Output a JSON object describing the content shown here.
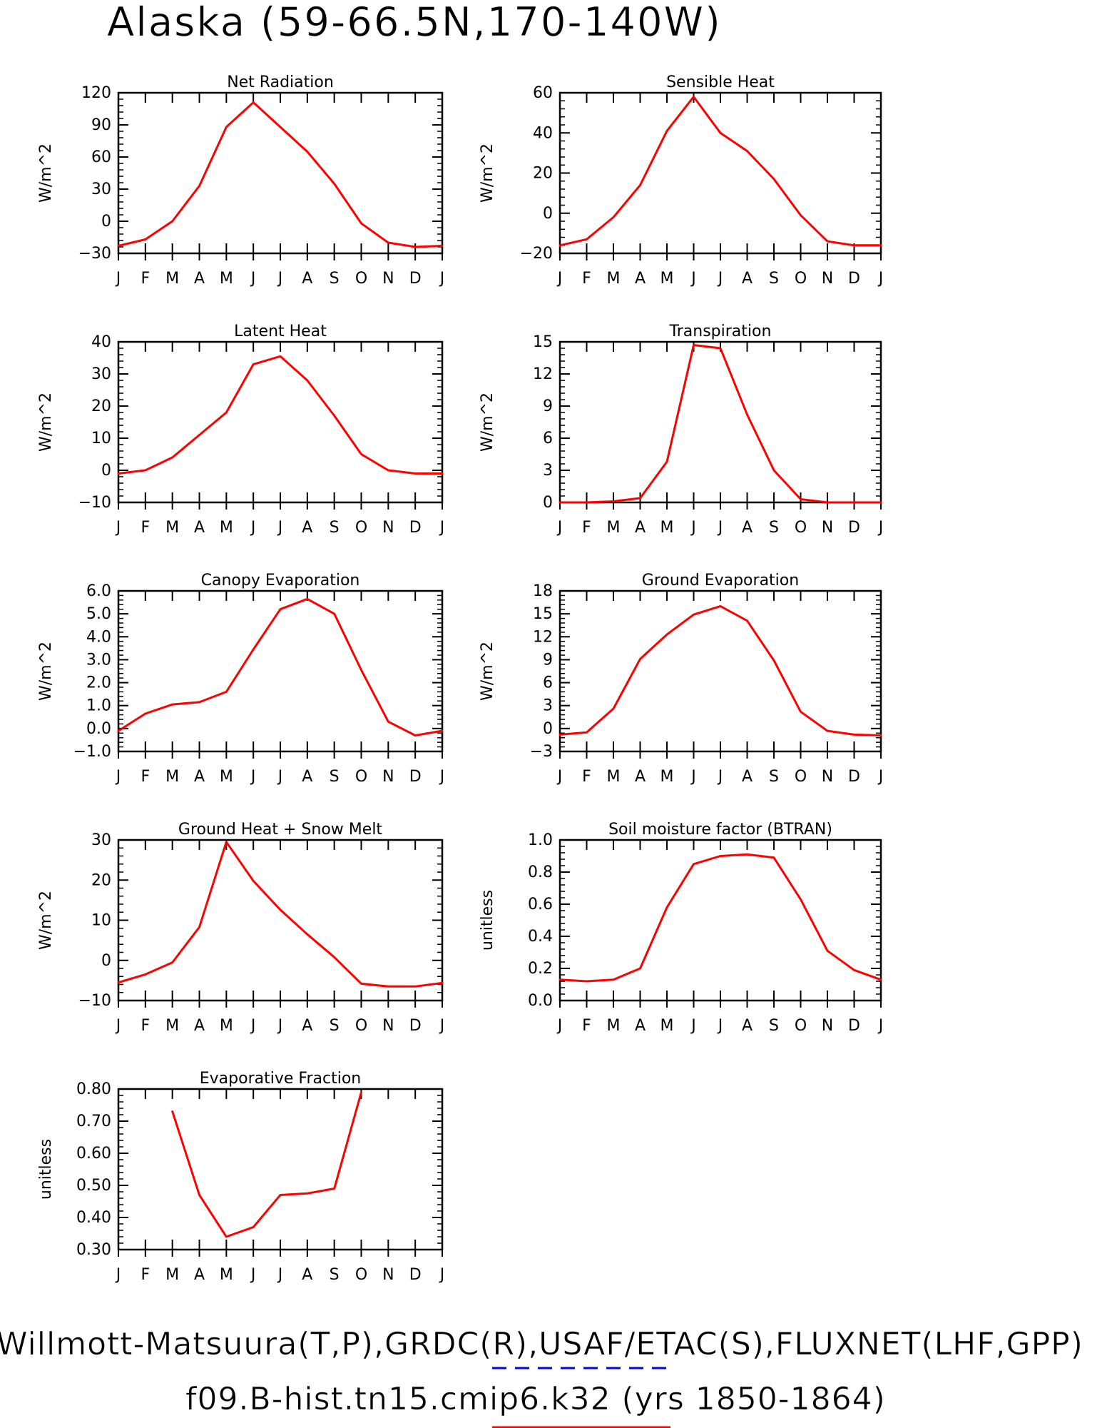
{
  "page_title": "Alaska (59-66.5N,170-140W)",
  "footer": {
    "line1": "Willmott-Matsuura(T,P),GRDC(R),USAF/ETAC(S),FLUXNET(LHF,GPP)",
    "line2": "f09.B-hist.tn15.cmip6.k32 (yrs 1850-1864)"
  },
  "legend": {
    "obs_color": "#0000ff",
    "model_color": "#ff0000"
  },
  "chart_data": [
    {
      "type": "line",
      "title": "Net Radiation",
      "ylabel": "W/m^2",
      "categories": [
        "J",
        "F",
        "M",
        "A",
        "M",
        "J",
        "J",
        "A",
        "S",
        "O",
        "N",
        "D",
        "J"
      ],
      "ylim": [
        -30,
        120
      ],
      "yticks": [
        -30,
        0,
        30,
        60,
        90,
        120
      ],
      "ytick_labels": [
        "-30",
        "0",
        "30",
        "60",
        "90",
        "120"
      ],
      "series": [
        {
          "color": "#ff0000",
          "values": [
            -23,
            -17,
            0,
            33,
            88,
            111,
            88,
            65,
            35,
            -2,
            -20,
            -24,
            -23
          ]
        }
      ]
    },
    {
      "type": "line",
      "title": "Sensible Heat",
      "ylabel": "W/m^2",
      "categories": [
        "J",
        "F",
        "M",
        "A",
        "M",
        "J",
        "J",
        "A",
        "S",
        "O",
        "N",
        "D",
        "J"
      ],
      "ylim": [
        -20,
        60
      ],
      "yticks": [
        -20,
        0,
        20,
        40,
        60
      ],
      "ytick_labels": [
        "-20",
        "0",
        "20",
        "40",
        "60"
      ],
      "series": [
        {
          "color": "#ff0000",
          "values": [
            -16,
            -13,
            -2,
            14,
            41,
            58,
            40,
            31,
            17,
            -1,
            -14,
            -16,
            -16
          ]
        }
      ]
    },
    {
      "type": "line",
      "title": "Latent Heat",
      "ylabel": "W/m^2",
      "categories": [
        "J",
        "F",
        "M",
        "A",
        "M",
        "J",
        "J",
        "A",
        "S",
        "O",
        "N",
        "D",
        "J"
      ],
      "ylim": [
        -10,
        40
      ],
      "yticks": [
        -10,
        0,
        10,
        20,
        30,
        40
      ],
      "ytick_labels": [
        "-10",
        "0",
        "10",
        "20",
        "30",
        "40"
      ],
      "series": [
        {
          "color": "#ff0000",
          "values": [
            -1,
            0,
            4,
            11,
            18,
            33,
            35.5,
            28,
            17,
            5,
            0,
            -1,
            -1
          ]
        }
      ]
    },
    {
      "type": "line",
      "title": "Transpiration",
      "ylabel": "W/m^2",
      "categories": [
        "J",
        "F",
        "M",
        "A",
        "M",
        "J",
        "J",
        "A",
        "S",
        "O",
        "N",
        "D",
        "J"
      ],
      "ylim": [
        0,
        15
      ],
      "yticks": [
        0,
        3,
        6,
        9,
        12,
        15
      ],
      "ytick_labels": [
        "0",
        "3",
        "6",
        "9",
        "12",
        "15"
      ],
      "series": [
        {
          "color": "#ff0000",
          "values": [
            0,
            0,
            0.1,
            0.4,
            3.8,
            14.7,
            14.4,
            8.2,
            3,
            0.3,
            0,
            0,
            0
          ]
        }
      ]
    },
    {
      "type": "line",
      "title": "Canopy Evaporation",
      "ylabel": "W/m^2",
      "categories": [
        "J",
        "F",
        "M",
        "A",
        "M",
        "J",
        "J",
        "A",
        "S",
        "O",
        "N",
        "D",
        "J"
      ],
      "ylim": [
        -1,
        6
      ],
      "yticks": [
        -1,
        0,
        1,
        2,
        3,
        4,
        5,
        6
      ],
      "ytick_labels": [
        "-1.0",
        "0.0",
        "1.0",
        "2.0",
        "3.0",
        "4.0",
        "5.0",
        "6.0"
      ],
      "series": [
        {
          "color": "#ff0000",
          "values": [
            -0.1,
            0.65,
            1.05,
            1.15,
            1.6,
            3.45,
            5.2,
            5.65,
            5.0,
            2.55,
            0.3,
            -0.3,
            -0.1
          ]
        }
      ]
    },
    {
      "type": "line",
      "title": "Ground Evaporation",
      "ylabel": "W/m^2",
      "categories": [
        "J",
        "F",
        "M",
        "A",
        "M",
        "J",
        "J",
        "A",
        "S",
        "O",
        "N",
        "D",
        "J"
      ],
      "ylim": [
        -3,
        18
      ],
      "yticks": [
        -3,
        0,
        3,
        6,
        9,
        12,
        15,
        18
      ],
      "ytick_labels": [
        "-3",
        "0",
        "3",
        "6",
        "9",
        "12",
        "15",
        "18"
      ],
      "series": [
        {
          "color": "#ff0000",
          "values": [
            -0.8,
            -0.5,
            2.6,
            9.1,
            12.3,
            14.9,
            16,
            14.1,
            8.9,
            2.2,
            -0.3,
            -0.8,
            -0.9
          ]
        }
      ]
    },
    {
      "type": "line",
      "title": "Ground Heat + Snow Melt",
      "ylabel": "W/m^2",
      "categories": [
        "J",
        "F",
        "M",
        "A",
        "M",
        "J",
        "J",
        "A",
        "S",
        "O",
        "N",
        "D",
        "J"
      ],
      "ylim": [
        -10,
        30
      ],
      "yticks": [
        -10,
        0,
        10,
        20,
        30
      ],
      "ytick_labels": [
        "-10",
        "0",
        "10",
        "20",
        "30"
      ],
      "series": [
        {
          "color": "#ff0000",
          "values": [
            -5.5,
            -3.5,
            -0.5,
            8.3,
            29.5,
            19.8,
            12.6,
            6.5,
            0.8,
            -5.8,
            -6.5,
            -6.5,
            -5.6
          ]
        }
      ]
    },
    {
      "type": "line",
      "title": "Soil moisture factor (BTRAN)",
      "ylabel": "unitless",
      "categories": [
        "J",
        "F",
        "M",
        "A",
        "M",
        "J",
        "J",
        "A",
        "S",
        "O",
        "N",
        "D",
        "J"
      ],
      "ylim": [
        0,
        1
      ],
      "yticks": [
        0,
        0.2,
        0.4,
        0.6,
        0.8,
        1.0
      ],
      "ytick_labels": [
        "0.0",
        "0.2",
        "0.4",
        "0.6",
        "0.8",
        "1.0"
      ],
      "series": [
        {
          "color": "#ff0000",
          "values": [
            0.13,
            0.12,
            0.13,
            0.2,
            0.58,
            0.85,
            0.9,
            0.91,
            0.89,
            0.63,
            0.31,
            0.19,
            0.13
          ]
        }
      ]
    },
    {
      "type": "line",
      "title": "Evaporative Fraction",
      "ylabel": "unitless",
      "categories": [
        "J",
        "F",
        "M",
        "A",
        "M",
        "J",
        "J",
        "A",
        "S",
        "O",
        "N",
        "D",
        "J"
      ],
      "ylim": [
        0.3,
        0.8
      ],
      "yticks": [
        0.3,
        0.4,
        0.5,
        0.6,
        0.7,
        0.8
      ],
      "ytick_labels": [
        "0.30",
        "0.40",
        "0.50",
        "0.60",
        "0.70",
        "0.80"
      ],
      "series": [
        {
          "color": "#ff0000",
          "values": [
            null,
            null,
            0.73,
            0.47,
            0.34,
            0.37,
            0.47,
            0.475,
            0.49,
            0.79,
            null,
            null,
            null
          ]
        }
      ]
    }
  ]
}
